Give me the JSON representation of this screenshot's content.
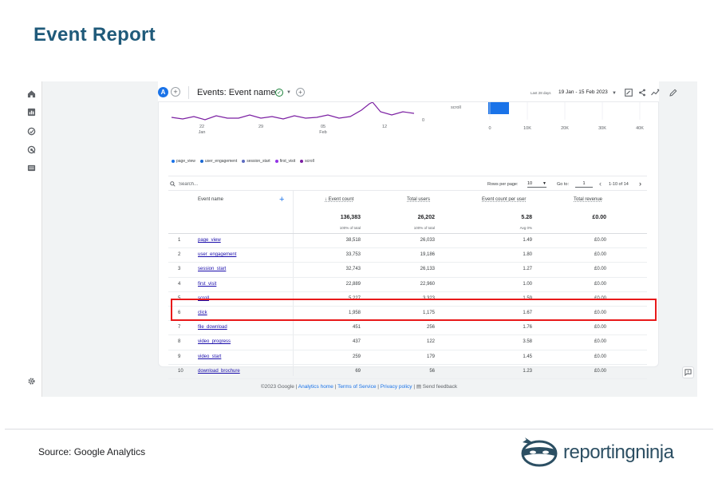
{
  "page": {
    "title": "Event Report",
    "source": "Source: Google Analytics",
    "logo_text": "reportingninja"
  },
  "ga": {
    "avatar_letter": "A",
    "report_title": "Events: Event name",
    "date_label": "Last 28 days",
    "date_range": "19 Jan - 15 Feb 2023",
    "chart": {
      "x_ticks": [
        {
          "day": "22",
          "month": "Jan"
        },
        {
          "day": "29",
          "month": ""
        },
        {
          "day": "05",
          "month": "Feb"
        },
        {
          "day": "12",
          "month": ""
        }
      ],
      "y_zero": "0",
      "bar_label": "scroll",
      "bar_ticks": [
        "0",
        "10K",
        "20K",
        "30K",
        "40K"
      ],
      "legend": [
        {
          "label": "page_view",
          "color": "#1a73e8"
        },
        {
          "label": "user_engagement",
          "color": "#1967d2"
        },
        {
          "label": "session_start",
          "color": "#5c6bc0"
        },
        {
          "label": "first_visit",
          "color": "#9334e6"
        },
        {
          "label": "scroll",
          "color": "#7b1fa2"
        }
      ]
    },
    "toolbar": {
      "search_placeholder": "Search...",
      "rows_per_page_label": "Rows per page:",
      "rows_per_page_value": "10",
      "goto_label": "Go to:",
      "goto_value": "1",
      "page_info": "1-10 of 14"
    },
    "table": {
      "headers": {
        "event_name": "Event name",
        "event_count": "Event count",
        "total_users": "Total users",
        "event_count_per_user": "Event count per user",
        "total_revenue": "Total revenue"
      },
      "totals": {
        "event_count": "136,383",
        "event_count_sub": "100% of total",
        "total_users": "26,202",
        "total_users_sub": "100% of total",
        "per_user": "5.28",
        "per_user_sub": "Avg 0%",
        "revenue": "£0.00"
      },
      "rows": [
        {
          "num": "1",
          "name": "page_view",
          "count": "38,518",
          "users": "26,033",
          "per_user": "1.49",
          "revenue": "£0.00"
        },
        {
          "num": "2",
          "name": "user_engagement",
          "count": "33,753",
          "users": "19,186",
          "per_user": "1.80",
          "revenue": "£0.00"
        },
        {
          "num": "3",
          "name": "session_start",
          "count": "32,743",
          "users": "26,133",
          "per_user": "1.27",
          "revenue": "£0.00"
        },
        {
          "num": "4",
          "name": "first_visit",
          "count": "22,889",
          "users": "22,960",
          "per_user": "1.00",
          "revenue": "£0.00"
        },
        {
          "num": "5",
          "name": "scroll",
          "count": "5,227",
          "users": "3,323",
          "per_user": "1.59",
          "revenue": "£0.00"
        },
        {
          "num": "6",
          "name": "click",
          "count": "1,958",
          "users": "1,175",
          "per_user": "1.67",
          "revenue": "£0.00"
        },
        {
          "num": "7",
          "name": "file_download",
          "count": "451",
          "users": "256",
          "per_user": "1.76",
          "revenue": "£0.00"
        },
        {
          "num": "8",
          "name": "video_progress",
          "count": "437",
          "users": "122",
          "per_user": "3.58",
          "revenue": "£0.00"
        },
        {
          "num": "9",
          "name": "video_start",
          "count": "259",
          "users": "179",
          "per_user": "1.45",
          "revenue": "£0.00"
        },
        {
          "num": "10",
          "name": "download_brochure",
          "count": "69",
          "users": "56",
          "per_user": "1.23",
          "revenue": "£0.00"
        }
      ]
    },
    "footer": {
      "copyright": "©2023 Google",
      "analytics_home": "Analytics home",
      "terms": "Terms of Service",
      "privacy": "Privacy policy",
      "feedback": "Send feedback"
    }
  }
}
